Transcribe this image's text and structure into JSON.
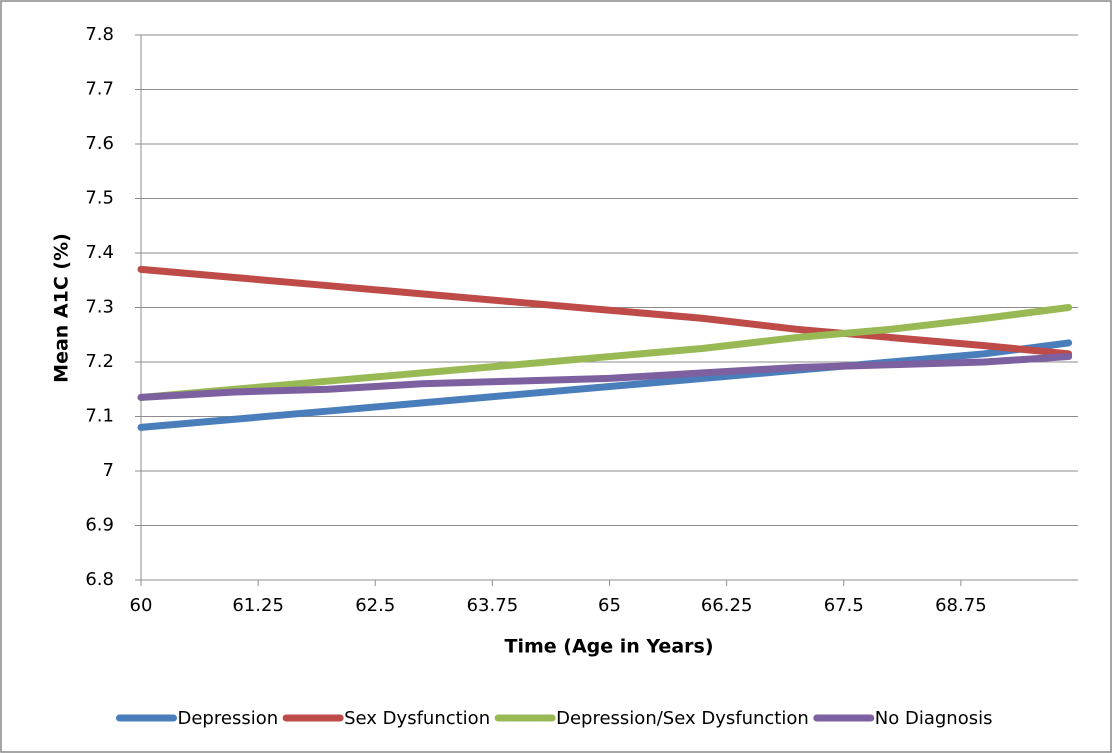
{
  "chart_data": {
    "type": "line",
    "xlabel": "Time (Age in Years)",
    "ylabel": "Mean A1C (%)",
    "x": [
      60,
      61,
      62,
      63,
      64,
      65,
      66,
      67,
      68,
      69,
      69.9
    ],
    "series": [
      {
        "name": "Depression",
        "color": "#4a7ebb",
        "values": [
          7.08,
          7.095,
          7.11,
          7.125,
          7.14,
          7.155,
          7.17,
          7.185,
          7.2,
          7.215,
          7.235
        ]
      },
      {
        "name": "Sex Dysfunction",
        "color": "#be4b48",
        "values": [
          7.37,
          7.355,
          7.34,
          7.325,
          7.31,
          7.295,
          7.28,
          7.26,
          7.245,
          7.23,
          7.215
        ]
      },
      {
        "name": "Depression/Sex Dysfunction",
        "color": "#98b954",
        "values": [
          7.135,
          7.15,
          7.165,
          7.18,
          7.195,
          7.21,
          7.225,
          7.245,
          7.26,
          7.28,
          7.3
        ]
      },
      {
        "name": "No Diagnosis",
        "color": "#7d60a0",
        "values": [
          7.135,
          7.145,
          7.15,
          7.16,
          7.165,
          7.17,
          7.18,
          7.19,
          7.195,
          7.2,
          7.21
        ]
      }
    ],
    "xlim": [
      60,
      70
    ],
    "xticks": [
      60,
      61.25,
      62.5,
      63.75,
      65,
      66.25,
      67.5,
      68.75
    ],
    "ylim": [
      6.8,
      7.8
    ],
    "yticks": [
      6.8,
      6.9,
      7,
      7.1,
      7.2,
      7.3,
      7.4,
      7.5,
      7.6,
      7.7,
      7.8
    ],
    "grid": true,
    "legend": "bottom"
  }
}
